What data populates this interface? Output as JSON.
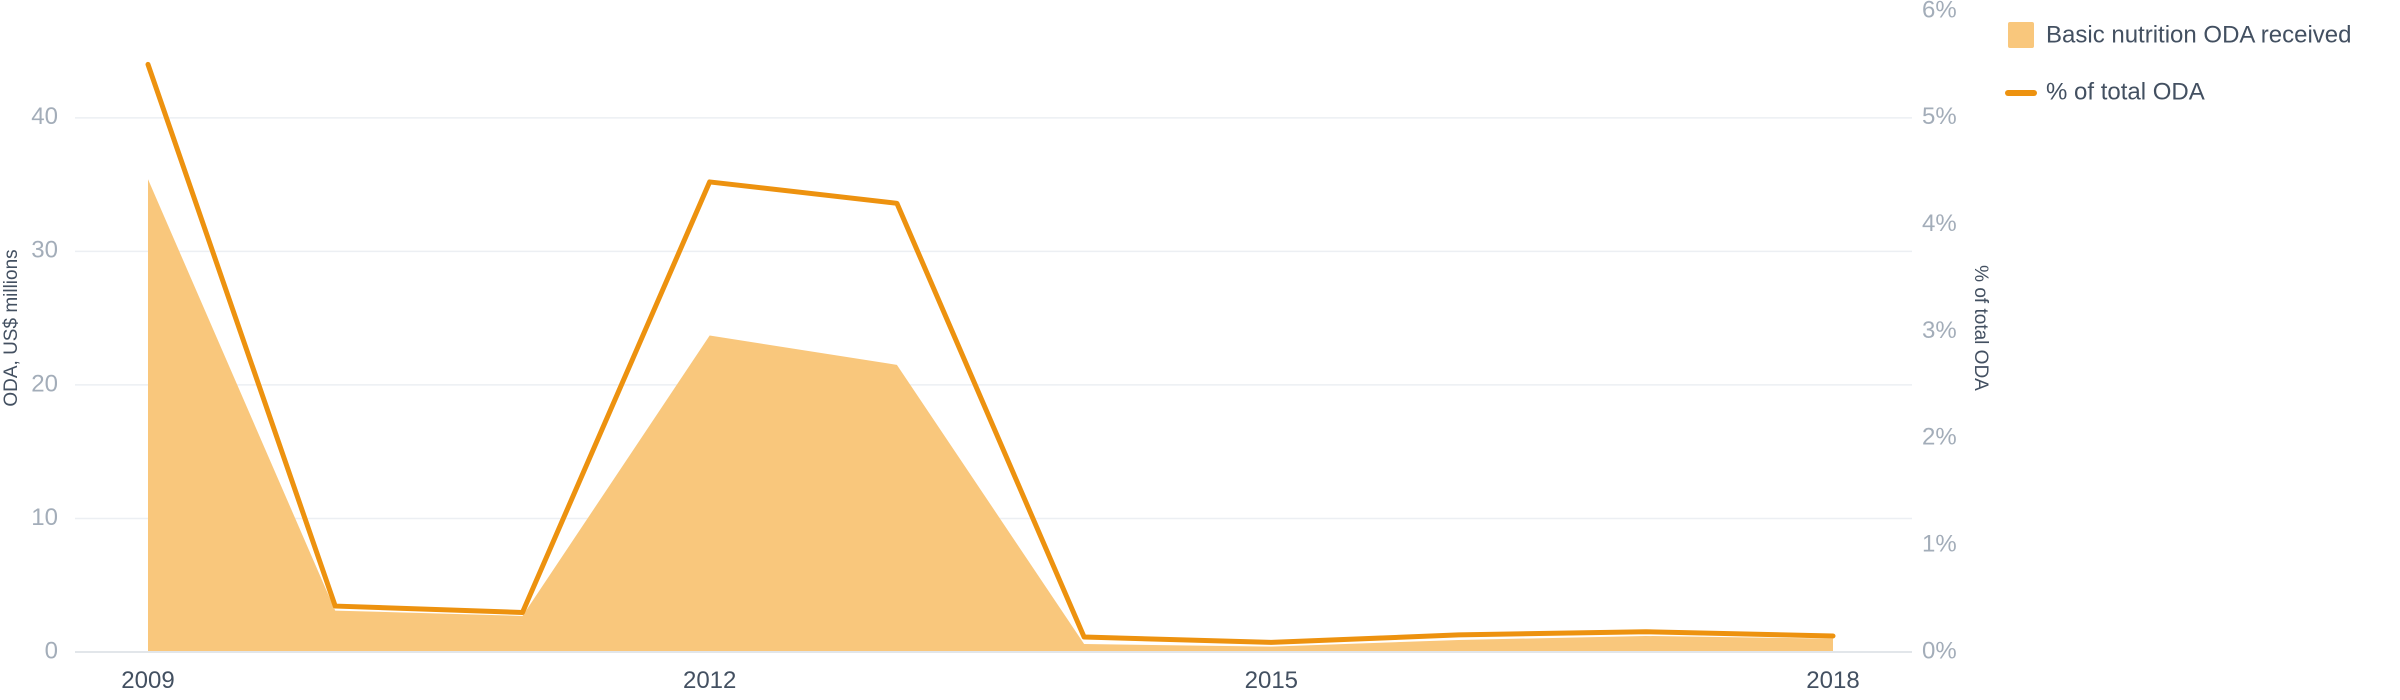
{
  "colors": {
    "area": "#f9c77c",
    "line": "#ed920f",
    "grid": "#eceff3",
    "axis": "#e2e6ea",
    "tick_label": "#a3adb9",
    "label_dark": "#435061"
  },
  "chart_data": {
    "type": "area",
    "x": [
      2009,
      2010,
      2011,
      2012,
      2013,
      2014,
      2015,
      2016,
      2017,
      2018
    ],
    "xticks": [
      2009,
      2012,
      2015,
      2018
    ],
    "xtick_labels": [
      "2009",
      "2012",
      "2015",
      "2018"
    ],
    "left_axis": {
      "label": "ODA, US$ millions",
      "ylim": [
        0,
        48
      ],
      "ticks": [
        0,
        10,
        20,
        30,
        40
      ],
      "tick_labels": [
        "0",
        "10",
        "20",
        "30",
        "40"
      ]
    },
    "right_axis": {
      "label": "% of total ODA",
      "ylim": [
        0,
        6
      ],
      "ticks": [
        0,
        1,
        2,
        3,
        4,
        5,
        6
      ],
      "tick_labels": [
        "0%",
        "1%",
        "2%",
        "3%",
        "4%",
        "5%",
        "6%"
      ]
    },
    "series": [
      {
        "name": "Basic nutrition ODA received",
        "type": "area",
        "axis": "left",
        "values": [
          35.4,
          3.1,
          2.7,
          23.7,
          21.5,
          0.6,
          0.4,
          0.9,
          1.2,
          1.0
        ]
      },
      {
        "name": "% of total ODA",
        "type": "line",
        "axis": "right",
        "values": [
          5.5,
          0.43,
          0.37,
          4.4,
          4.2,
          0.14,
          0.09,
          0.16,
          0.19,
          0.15
        ]
      }
    ],
    "legend": {
      "position": "top-right",
      "items": [
        {
          "label": "Basic nutrition ODA received",
          "kind": "area"
        },
        {
          "label": "% of total ODA",
          "kind": "line"
        }
      ]
    },
    "grid": true
  }
}
